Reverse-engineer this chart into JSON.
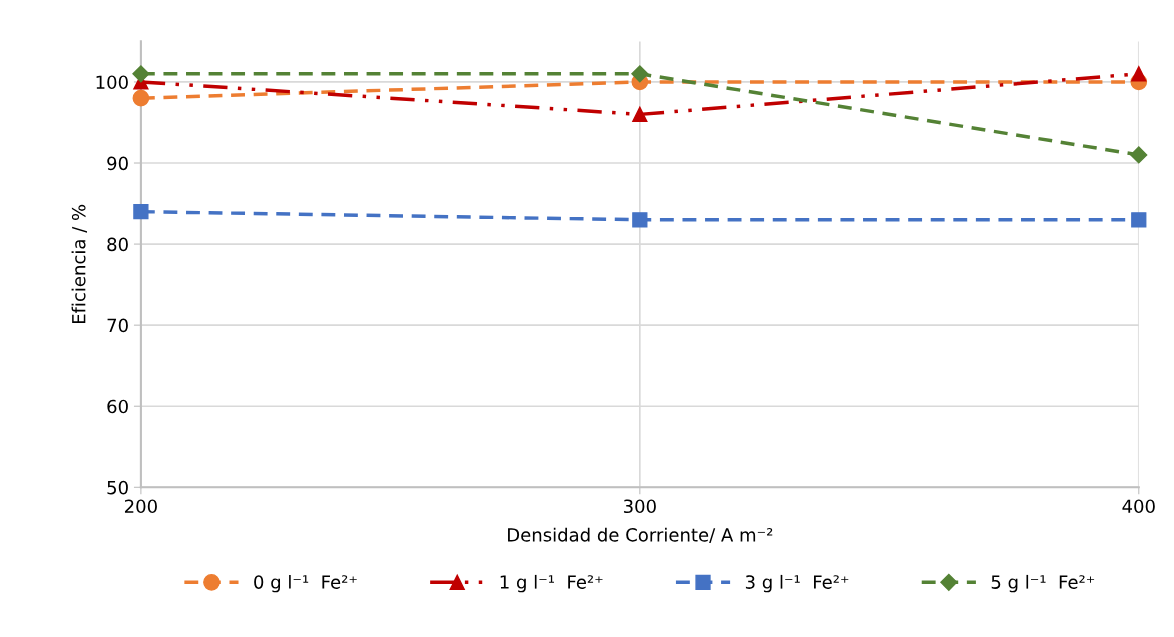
{
  "chart_data": {
    "type": "line",
    "xlabel": "Densidad de Corriente/ A m⁻²",
    "ylabel": "Eficiencia / %",
    "x": [
      200,
      300,
      400
    ],
    "xlim": [
      200,
      400
    ],
    "xticks": [
      200,
      300,
      400
    ],
    "ylim": [
      50,
      105
    ],
    "yticks": [
      50,
      60,
      70,
      80,
      90,
      100
    ],
    "grid": true,
    "legend": "bottom",
    "series": [
      {
        "name": "0 g l⁻¹  Fe²⁺",
        "color": "#ed7d31",
        "marker": "circle",
        "line_style": "dashed",
        "values": [
          98,
          100,
          100
        ]
      },
      {
        "name": "1 g l⁻¹  Fe²⁺",
        "color": "#c00000",
        "marker": "triangle",
        "line_style": "dashdotdot",
        "values": [
          100,
          96,
          101
        ]
      },
      {
        "name": "3 g l⁻¹  Fe²⁺",
        "color": "#4472c4",
        "marker": "square",
        "line_style": "dashed",
        "values": [
          84,
          83,
          83
        ]
      },
      {
        "name": "5 g l⁻¹  Fe²⁺",
        "color": "#548235",
        "marker": "diamond",
        "line_style": "dashed",
        "values": [
          101,
          101,
          91
        ]
      }
    ]
  }
}
